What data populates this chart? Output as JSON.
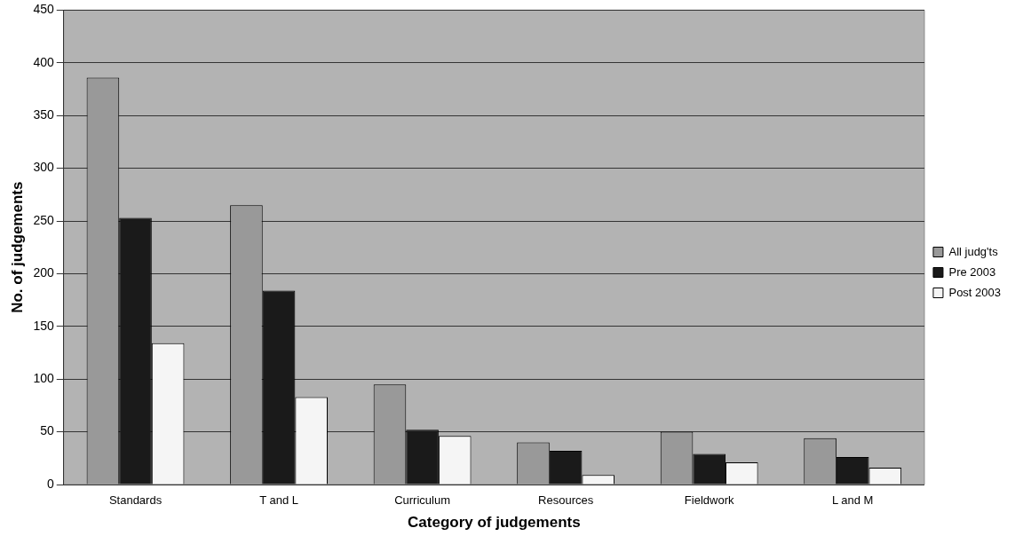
{
  "chart_data": {
    "type": "bar",
    "xlabel": "Category of judgements",
    "ylabel": "No. of judgements",
    "categories": [
      "Standards",
      "T and L",
      "Curriculum",
      "Resources",
      "Fieldwork",
      "L and M"
    ],
    "series": [
      {
        "name": "All judg'ts",
        "color": "#999999",
        "values": [
          386,
          265,
          95,
          40,
          50,
          44
        ]
      },
      {
        "name": "Pre 2003",
        "color": "#1a1a1a",
        "values": [
          253,
          184,
          52,
          32,
          29,
          26
        ]
      },
      {
        "name": "Post 2003",
        "color": "#f5f5f5",
        "values": [
          134,
          83,
          46,
          9,
          21,
          16
        ]
      }
    ],
    "ylim": [
      0,
      450
    ],
    "yticks": [
      0,
      50,
      100,
      150,
      200,
      250,
      300,
      350,
      400,
      450
    ],
    "grid": "y",
    "legend": "right"
  }
}
